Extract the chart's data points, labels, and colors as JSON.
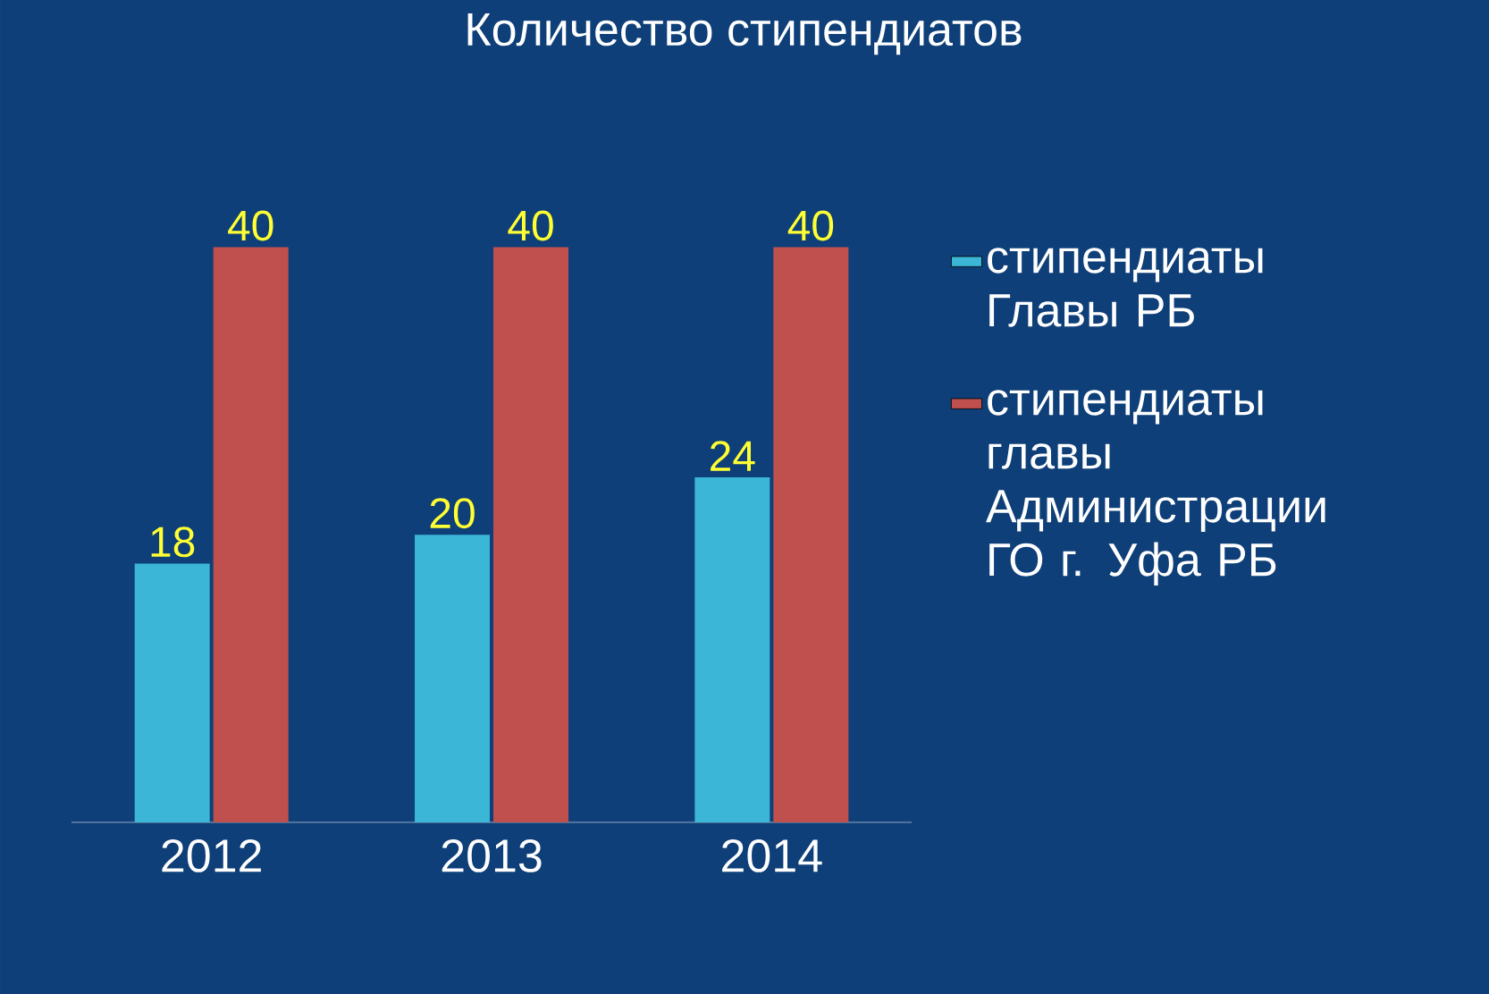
{
  "chart_data": {
    "type": "bar",
    "title": "Количество стипендиатов",
    "categories": [
      "2012",
      "2013",
      "2014"
    ],
    "series": [
      {
        "name": "стипендиаты Главы РБ",
        "color": "#3bb6d6",
        "values": [
          18,
          20,
          24
        ]
      },
      {
        "name": "стипендиаты главы Администрации ГО г. Уфа РБ",
        "color": "#c0504d",
        "values": [
          40,
          40,
          40
        ]
      }
    ],
    "data_labels": true,
    "legend": "right"
  }
}
